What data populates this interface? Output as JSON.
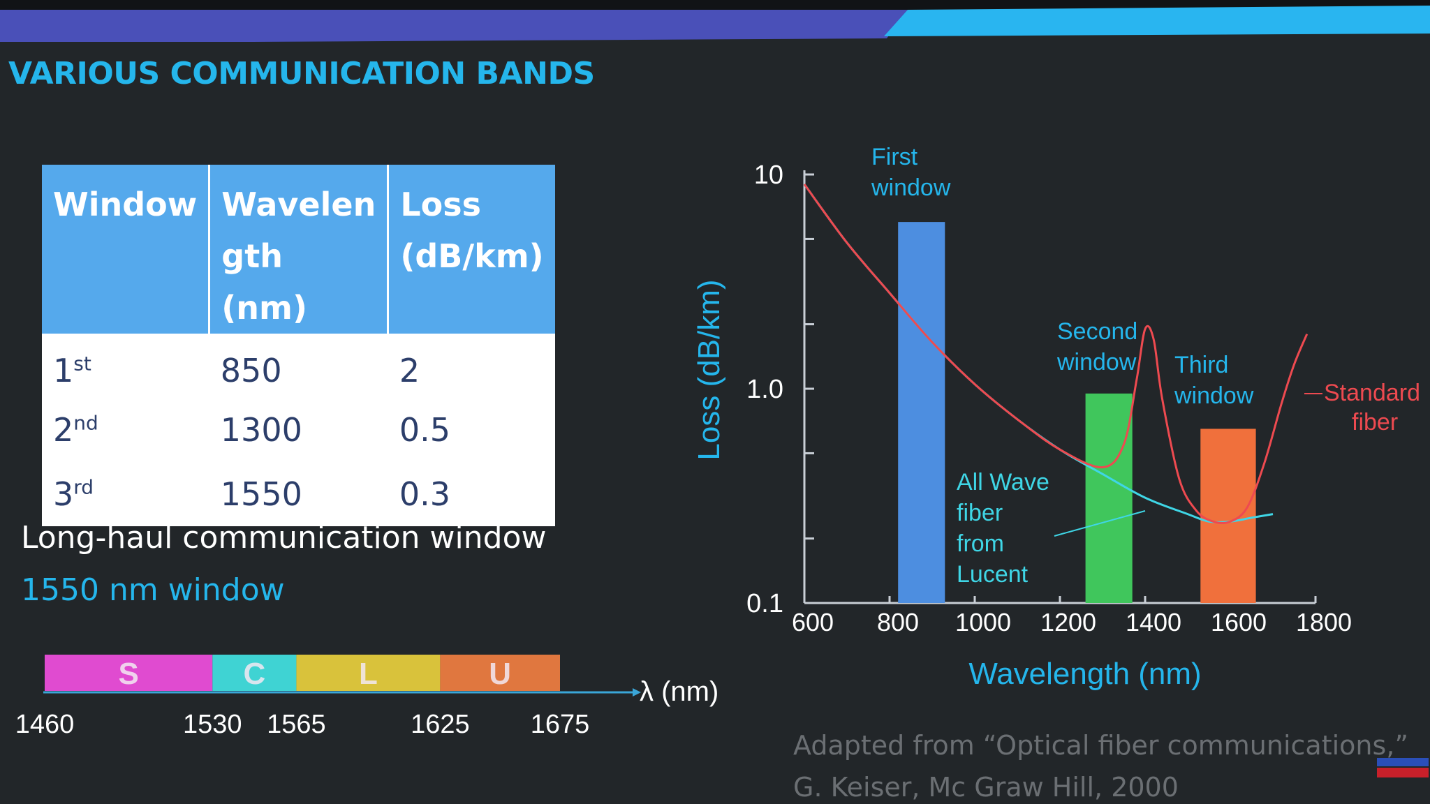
{
  "slide": {
    "title": "VARIOUS COMMUNICATION BANDS",
    "colors": {
      "accent": "#25b6ec",
      "header_fill": "#55a9ec",
      "background": "#222629"
    }
  },
  "table": {
    "headers": [
      "Window",
      "Wavelen gth (nm)",
      "Loss (dB/km)"
    ],
    "header_lines": [
      [
        "Window"
      ],
      [
        "Wavelen",
        "gth (nm)"
      ],
      [
        "Loss",
        "(dB/km)"
      ]
    ],
    "rows": [
      {
        "window_num": "1",
        "window_suffix": "st",
        "wavelength": "850",
        "loss": "2"
      },
      {
        "window_num": "2",
        "window_suffix": "nd",
        "wavelength": "1300",
        "loss": "0.5"
      },
      {
        "window_num": "3",
        "window_suffix": "rd",
        "wavelength": "1550",
        "loss": "0.3"
      }
    ]
  },
  "text": {
    "longhaul": "Long-haul communication window",
    "window1550": "1550 nm window"
  },
  "bands": {
    "axis_label": "λ (nm)",
    "segments": [
      {
        "label": "S",
        "start": 1460,
        "end": 1530,
        "color": "#e04bd0"
      },
      {
        "label": "C",
        "start": 1530,
        "end": 1565,
        "color": "#3fd3d3"
      },
      {
        "label": "L",
        "start": 1565,
        "end": 1625,
        "color": "#d9c23b"
      },
      {
        "label": "U",
        "start": 1625,
        "end": 1675,
        "color": "#e0773f"
      }
    ],
    "ticks": [
      "1460",
      "1530",
      "1565",
      "1625",
      "1675"
    ]
  },
  "chart_data": {
    "type": "line",
    "xlabel": "Wavelength (nm)",
    "ylabel": "Loss (dB/km)",
    "xlim": [
      600,
      1800
    ],
    "ylim": [
      0.1,
      10
    ],
    "yscale": "log",
    "x_ticks": [
      "600",
      "800",
      "1000",
      "1200",
      "1400",
      "1600",
      "1800"
    ],
    "y_ticks": [
      "10",
      "1.0",
      "0.1"
    ],
    "windows": [
      {
        "label_lines": [
          "First",
          "window"
        ],
        "x_start": 820,
        "x_end": 930,
        "loss_top": 6.0,
        "color": "#4d8ee0"
      },
      {
        "label_lines": [
          "Second",
          "window"
        ],
        "x_start": 1260,
        "x_end": 1370,
        "loss_top": 0.95,
        "color": "#40c65c"
      },
      {
        "label_lines": [
          "Third",
          "window"
        ],
        "x_start": 1530,
        "x_end": 1660,
        "loss_top": 0.65,
        "color": "#f0703c"
      }
    ],
    "series": [
      {
        "name": "Standard fiber",
        "label_lines": [
          "Standard",
          "fiber"
        ],
        "color": "#ee4a50",
        "x": [
          600,
          700,
          800,
          900,
          1000,
          1100,
          1200,
          1300,
          1350,
          1380,
          1400,
          1420,
          1440,
          1480,
          1520,
          1560,
          1600,
          1640,
          1680,
          1720,
          1750,
          1780
        ],
        "y": [
          9.0,
          4.8,
          2.8,
          1.65,
          1.05,
          0.72,
          0.52,
          0.43,
          0.55,
          1.1,
          1.9,
          1.7,
          0.9,
          0.38,
          0.27,
          0.24,
          0.24,
          0.28,
          0.45,
          0.85,
          1.3,
          1.8
        ]
      },
      {
        "name": "All Wave fiber from Lucent",
        "label_lines": [
          "All Wave",
          "fiber",
          "from",
          "Lucent"
        ],
        "color": "#3fd6e6",
        "x": [
          600,
          700,
          800,
          900,
          1000,
          1100,
          1200,
          1300,
          1400,
          1500,
          1550,
          1600,
          1650,
          1700
        ],
        "y": [
          9.0,
          4.8,
          2.8,
          1.65,
          1.05,
          0.72,
          0.52,
          0.4,
          0.31,
          0.26,
          0.24,
          0.24,
          0.25,
          0.26
        ]
      }
    ]
  },
  "credit": {
    "line1": "Adapted from “Optical fiber communications,”",
    "line2": "G. Keiser, Mc Graw Hill, 2000"
  }
}
